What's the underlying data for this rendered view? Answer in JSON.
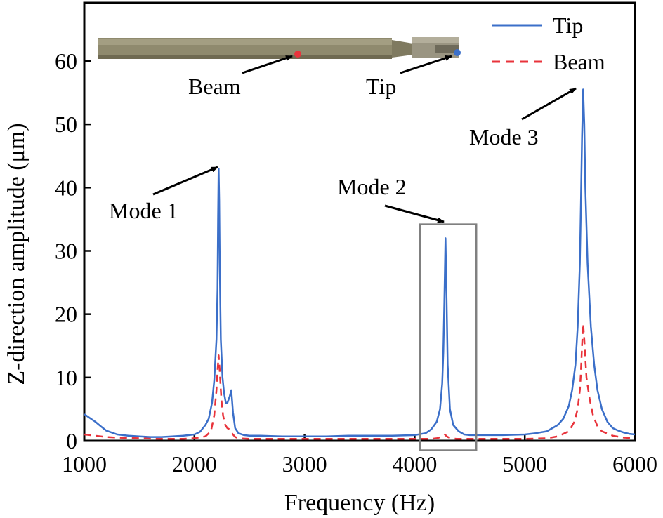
{
  "chart_data": {
    "type": "line",
    "xlabel": "Frequency (Hz)",
    "ylabel": "Z-direction amplitude (μm)",
    "xlim": [
      1000,
      6000
    ],
    "ylim": [
      0,
      65
    ],
    "xticks": [
      1000,
      2000,
      3000,
      4000,
      5000,
      6000
    ],
    "yticks": [
      0,
      10,
      20,
      30,
      40,
      50,
      60
    ],
    "grid": false,
    "legend_position": "top-right",
    "colors": {
      "tip": "#3b6fc9",
      "beam": "#e8333b",
      "highlight_box": "#808080"
    },
    "series": [
      {
        "name": "Tip",
        "style": "solid",
        "x": [
          1000,
          1050,
          1100,
          1150,
          1200,
          1300,
          1400,
          1500,
          1600,
          1700,
          1800,
          1900,
          2000,
          2050,
          2100,
          2130,
          2160,
          2180,
          2200,
          2210,
          2215,
          2220,
          2225,
          2230,
          2240,
          2255,
          2270,
          2285,
          2300,
          2320,
          2335,
          2350,
          2370,
          2400,
          2450,
          2500,
          2600,
          2800,
          3000,
          3200,
          3400,
          3600,
          3800,
          4000,
          4100,
          4150,
          4200,
          4230,
          4250,
          4260,
          4270,
          4280,
          4290,
          4300,
          4320,
          4350,
          4400,
          4450,
          4500,
          4600,
          4800,
          5000,
          5100,
          5200,
          5300,
          5350,
          5400,
          5430,
          5460,
          5480,
          5500,
          5510,
          5520,
          5530,
          5540,
          5550,
          5570,
          5600,
          5630,
          5660,
          5700,
          5750,
          5800,
          5850,
          5900,
          5950,
          6000
        ],
        "y": [
          4.2,
          3.6,
          3.0,
          2.3,
          1.6,
          1.0,
          0.8,
          0.7,
          0.6,
          0.6,
          0.7,
          0.8,
          1.0,
          1.4,
          2.5,
          3.5,
          6.0,
          9.5,
          16.0,
          24.0,
          35.0,
          43.0,
          38.0,
          28.0,
          16.0,
          10.0,
          7.5,
          6.0,
          6.0,
          7.0,
          8.0,
          4.5,
          2.0,
          1.2,
          0.9,
          0.8,
          0.8,
          0.7,
          0.7,
          0.7,
          0.8,
          0.8,
          0.8,
          0.9,
          1.2,
          1.8,
          3.0,
          5.0,
          9.0,
          14.0,
          22.0,
          32.0,
          22.0,
          12.0,
          5.0,
          2.5,
          1.5,
          1.0,
          0.9,
          0.9,
          0.9,
          1.0,
          1.2,
          1.5,
          2.5,
          3.5,
          5.5,
          8.0,
          12.0,
          18.0,
          28.0,
          38.0,
          48.0,
          55.5,
          50.0,
          40.0,
          28.0,
          18.0,
          12.0,
          8.0,
          5.0,
          3.0,
          2.0,
          1.6,
          1.3,
          1.1,
          1.0
        ]
      },
      {
        "name": "Beam",
        "style": "dashed",
        "x": [
          1000,
          1100,
          1200,
          1300,
          1500,
          1700,
          1900,
          2000,
          2100,
          2150,
          2180,
          2200,
          2210,
          2220,
          2230,
          2245,
          2260,
          2280,
          2300,
          2320,
          2340,
          2370,
          2400,
          2500,
          2700,
          3000,
          3500,
          4000,
          4150,
          4200,
          4240,
          4260,
          4275,
          4285,
          4300,
          4330,
          4380,
          4450,
          4600,
          4800,
          5000,
          5200,
          5300,
          5400,
          5450,
          5480,
          5500,
          5510,
          5520,
          5530,
          5540,
          5560,
          5590,
          5620,
          5660,
          5700,
          5800,
          5900,
          6000
        ],
        "y": [
          1.0,
          0.8,
          0.6,
          0.5,
          0.4,
          0.3,
          0.3,
          0.4,
          0.7,
          1.5,
          4.0,
          8.0,
          11.0,
          13.5,
          11.0,
          6.5,
          4.0,
          2.5,
          2.0,
          1.8,
          1.2,
          0.6,
          0.4,
          0.3,
          0.3,
          0.3,
          0.3,
          0.3,
          0.3,
          0.4,
          0.6,
          0.8,
          1.0,
          0.8,
          0.6,
          0.4,
          0.3,
          0.3,
          0.3,
          0.3,
          0.3,
          0.4,
          0.7,
          1.5,
          3.0,
          5.0,
          8.0,
          11.0,
          15.0,
          18.5,
          16.0,
          10.0,
          6.5,
          4.0,
          2.3,
          1.5,
          0.8,
          0.5,
          0.4
        ]
      }
    ],
    "annotations": {
      "mode1": "Mode 1",
      "mode2": "Mode 2",
      "mode3": "Mode 3",
      "photo_beam": "Beam",
      "photo_tip": "Tip"
    },
    "highlight_box": {
      "x": [
        4050,
        4560
      ],
      "y": [
        -1.5,
        34.2
      ]
    }
  }
}
